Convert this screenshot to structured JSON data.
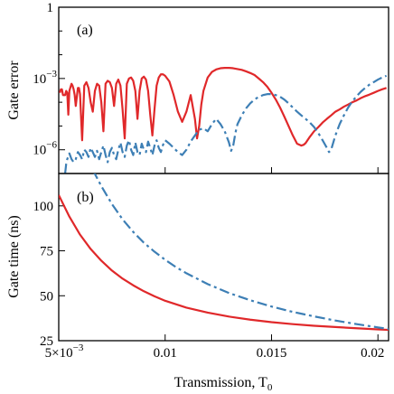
{
  "chart_data": [
    {
      "type": "line",
      "panel_label": "(a)",
      "ylabel": "Gate error",
      "yscale": "log",
      "ylim": [
        1e-07,
        1
      ],
      "xlim": [
        0.005,
        0.0205
      ],
      "y_ticks": [
        {
          "value": 1,
          "label": "1",
          "exp": ""
        },
        {
          "value": 0.001,
          "label": "10",
          "exp": "−3"
        },
        {
          "value": 1e-06,
          "label": "10",
          "exp": "−6"
        }
      ],
      "colors": {
        "red": "#e0282a",
        "blue": "#3d7fb5"
      },
      "series": [
        {
          "style": "solid-red",
          "x": [
            0.00505,
            0.0051,
            0.00515,
            0.0052,
            0.0053,
            0.00535,
            0.0054,
            0.00545,
            0.0055,
            0.0056,
            0.00565,
            0.0057,
            0.00575,
            0.0058,
            0.0059,
            0.00595,
            0.006,
            0.0061,
            0.0062,
            0.0063,
            0.0064,
            0.0065,
            0.0066,
            0.0067,
            0.0068,
            0.0069,
            0.007,
            0.0071,
            0.0072,
            0.0073,
            0.0074,
            0.0075,
            0.0076,
            0.0077,
            0.0078,
            0.0079,
            0.008,
            0.0081,
            0.0082,
            0.0083,
            0.0084,
            0.0085,
            0.0086,
            0.0087,
            0.0088,
            0.0089,
            0.009,
            0.0091,
            0.0092,
            0.0093,
            0.0094,
            0.0095,
            0.0096,
            0.0097,
            0.0098,
            0.0099,
            0.01,
            0.0102,
            0.0104,
            0.0106,
            0.0108,
            0.011,
            0.0112,
            0.0114,
            0.0115,
            0.0116,
            0.0117,
            0.0118,
            0.012,
            0.0122,
            0.0124,
            0.0126,
            0.0128,
            0.013,
            0.0132,
            0.0134,
            0.0136,
            0.0138,
            0.014,
            0.0142,
            0.0144,
            0.0146,
            0.0148,
            0.015,
            0.0152,
            0.0154,
            0.0156,
            0.0158,
            0.016,
            0.0162,
            0.0164,
            0.0165,
            0.0166,
            0.0168,
            0.017,
            0.0172,
            0.0174,
            0.0176,
            0.0178,
            0.018,
            0.0182,
            0.0184,
            0.0186,
            0.0188,
            0.019,
            0.0192,
            0.0194,
            0.0196,
            0.0198,
            0.02,
            0.0202,
            0.0204
          ],
          "y": [
            0.00025,
            0.00035,
            0.00035,
            0.0002,
            0.0002,
            0.0003,
            0.00025,
            3e-05,
            0.0003,
            0.0006,
            0.0005,
            0.00035,
            0.0002,
            7e-05,
            0.0004,
            0.0004,
            0.00022,
            2.5e-06,
            0.0005,
            0.0007,
            0.0004,
            0.0001,
            4e-05,
            0.0003,
            0.0006,
            0.0005,
            0.0001,
            6e-06,
            0.0006,
            0.0008,
            0.0007,
            0.0004,
            7e-05,
            0.0006,
            0.0009,
            0.0005,
            5e-05,
            3e-06,
            0.0006,
            0.001,
            0.0011,
            0.0008,
            0.0003,
            2e-05,
            0.0003,
            0.001,
            0.0012,
            0.0009,
            0.0003,
            3e-05,
            4e-06,
            5e-05,
            0.0005,
            0.0011,
            0.0015,
            0.0015,
            0.0013,
            0.00075,
            0.0002,
            4e-05,
            1.5e-05,
            4e-05,
            0.0002,
            2e-05,
            3e-06,
            1e-05,
            8e-05,
            0.0003,
            0.0011,
            0.0019,
            0.0024,
            0.0027,
            0.0028,
            0.0028,
            0.0027,
            0.0025,
            0.0023,
            0.002,
            0.0017,
            0.0014,
            0.001,
            0.0007,
            0.00045,
            0.00025,
            0.00013,
            6e-05,
            2.5e-05,
            1e-05,
            4e-06,
            1.8e-06,
            1.5e-06,
            1.6e-06,
            1.9e-06,
            3.5e-06,
            6e-06,
            9e-06,
            1.4e-05,
            2e-05,
            2.8e-05,
            4e-05,
            5e-05,
            6.5e-05,
            8e-05,
            0.0001,
            0.00012,
            0.00015,
            0.00018,
            0.00021,
            0.00025,
            0.0003,
            0.00035,
            0.0004
          ],
          "x2": [
            0.0162,
            0.0163,
            0.0164,
            0.0165,
            0.0166,
            0.0168,
            0.017,
            0.0172,
            0.0174,
            0.0176,
            0.0178,
            0.018,
            0.0182,
            0.0184,
            0.0186,
            0.0188,
            0.019,
            0.0192,
            0.0194,
            0.0196,
            0.0198,
            0.02,
            0.0202,
            0.0204
          ],
          "y2": [
            1.8e-06,
            1.5e-06,
            1.3e-06,
            1.2e-06,
            1.3e-06,
            1.8e-06,
            3e-06,
            5e-06,
            9e-06,
            1.6e-05,
            2.8e-05,
            4.5e-05,
            7e-05,
            0.0001,
            0.00015,
            0.00022,
            0.00032,
            0.00045,
            0.0006,
            0.0008,
            0.0011,
            0.0014,
            0.0018,
            0.0022
          ]
        },
        {
          "style": "dash-dot-blue",
          "x": [
            0.0053,
            0.00535,
            0.0054,
            0.0055,
            0.0056,
            0.0057,
            0.0058,
            0.0059,
            0.006,
            0.0061,
            0.0062,
            0.0063,
            0.0064,
            0.0065,
            0.0066,
            0.0067,
            0.0068,
            0.0069,
            0.007,
            0.0071,
            0.0072,
            0.0073,
            0.0074,
            0.0075,
            0.0076,
            0.0077,
            0.0078,
            0.0079,
            0.008,
            0.0081,
            0.0082,
            0.0083,
            0.0084,
            0.0085,
            0.0086,
            0.0087,
            0.0088,
            0.0089,
            0.009,
            0.0091,
            0.0092,
            0.0093,
            0.0094,
            0.0095,
            0.0096,
            0.0097,
            0.0098,
            0.0099,
            0.01,
            0.0102,
            0.0104,
            0.0106,
            0.0108,
            0.011,
            0.0112,
            0.0114,
            0.0116,
            0.0118,
            0.012,
            0.0122,
            0.0124,
            0.0126,
            0.0128,
            0.013,
            0.0131,
            0.0132,
            0.0133,
            0.0134,
            0.0136,
            0.0138,
            0.014,
            0.0142,
            0.0144,
            0.0146,
            0.0148,
            0.015,
            0.0152,
            0.0154,
            0.0156,
            0.0158,
            0.016,
            0.0162,
            0.0164,
            0.0166,
            0.0168,
            0.017,
            0.0172,
            0.0174,
            0.0176,
            0.0177,
            0.0178,
            0.018,
            0.0182,
            0.0184,
            0.0186,
            0.0188,
            0.019,
            0.0192,
            0.0194,
            0.0196,
            0.0198,
            0.02,
            0.0202,
            0.0204
          ],
          "y": [
            1e-07,
            2.5e-07,
            4e-07,
            7e-07,
            4e-07,
            3e-07,
            4e-07,
            8e-07,
            6e-07,
            4e-07,
            1e-06,
            8e-07,
            5e-07,
            1.2e-06,
            8e-07,
            5e-07,
            9e-07,
            4e-07,
            8e-07,
            1.5e-06,
            6e-07,
            3e-07,
            8e-07,
            1.2e-06,
            6e-07,
            4e-07,
            1e-06,
            2e-06,
            8e-07,
            5e-07,
            1.5e-06,
            2.5e-06,
            1e-06,
            6e-07,
            2e-06,
            8e-07,
            6e-07,
            1.8e-06,
            1e-06,
            8e-07,
            2.2e-06,
            1.2e-06,
            6e-07,
            1.5e-06,
            2.5e-06,
            1.2e-06,
            8e-07,
            1.6e-06,
            2.5e-06,
            1.8e-06,
            1.2e-06,
            8e-07,
            6e-07,
            1e-06,
            2.2e-06,
            4e-06,
            7e-06,
            8e-06,
            6e-06,
            1.2e-05,
            2e-05,
            1.2e-05,
            6e-06,
            2e-06,
            9e-07,
            1.5e-06,
            5e-06,
            1.2e-05,
            2.8e-05,
            5.5e-05,
            9e-05,
            0.00013,
            0.00017,
            0.0002,
            0.00022,
            0.00022,
            0.0002,
            0.00017,
            0.00013,
            9e-05,
            6e-05,
            4e-05,
            2.8e-05,
            2e-05,
            1.4e-05,
            9e-06,
            5e-06,
            2.5e-06,
            1.2e-06,
            8e-07,
            1e-06,
            4e-06,
            1.2e-05,
            2.8e-05,
            6e-05,
            0.00011,
            0.00018,
            0.00028,
            0.0004,
            0.00055,
            0.0007,
            0.0009,
            0.0011,
            0.0013
          ]
        }
      ]
    },
    {
      "type": "line",
      "panel_label": "(b)",
      "ylabel": "Gate time (ns)",
      "xlabel": "Transmission, T",
      "xlabel_sub": "0",
      "ylim": [
        25,
        118
      ],
      "xlim": [
        0.005,
        0.0205
      ],
      "y_ticks": [
        25,
        50,
        75,
        100
      ],
      "x_ticks": [
        {
          "value": 0.005,
          "label": "5×10",
          "exp": "−3"
        },
        {
          "value": 0.01,
          "label": "0.01",
          "exp": ""
        },
        {
          "value": 0.015,
          "label": "0.015",
          "exp": ""
        },
        {
          "value": 0.02,
          "label": "0.02",
          "exp": ""
        }
      ],
      "series": [
        {
          "style": "solid-red",
          "x": [
            0.005,
            0.0055,
            0.006,
            0.0065,
            0.007,
            0.0075,
            0.008,
            0.0085,
            0.009,
            0.0095,
            0.01,
            0.011,
            0.012,
            0.013,
            0.014,
            0.015,
            0.016,
            0.017,
            0.018,
            0.019,
            0.02,
            0.0205
          ],
          "y": [
            106,
            94,
            84,
            76,
            69.5,
            64,
            59.5,
            55.8,
            52.5,
            49.7,
            47.2,
            43.4,
            40.6,
            38.4,
            36.7,
            35.3,
            34.2,
            33.3,
            32.6,
            31.9,
            31.3,
            31
          ]
        },
        {
          "style": "dash-dot-blue",
          "x": [
            0.0066,
            0.007,
            0.0075,
            0.008,
            0.0085,
            0.009,
            0.0095,
            0.01,
            0.0105,
            0.011,
            0.012,
            0.013,
            0.014,
            0.015,
            0.016,
            0.017,
            0.018,
            0.019,
            0.02,
            0.0205
          ],
          "y": [
            120,
            111,
            101,
            92.5,
            85.5,
            79.5,
            74.5,
            70,
            66,
            62.5,
            56.5,
            51.5,
            47.5,
            44,
            41,
            38.5,
            36.2,
            34.2,
            32.4,
            31.5
          ]
        }
      ]
    }
  ]
}
